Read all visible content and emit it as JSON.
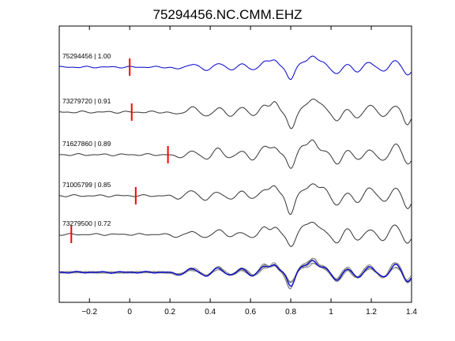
{
  "chart_data": {
    "type": "line",
    "title": "75294456.NC.CMM.EHZ",
    "xlabel": "",
    "ylabel": "",
    "xlim": [
      -0.35,
      1.4
    ],
    "x_ticks": [
      -0.2,
      0,
      0.2,
      0.4,
      0.6,
      0.8,
      1,
      1.2,
      1.4
    ],
    "x_tick_labels": [
      "−0.2",
      "0",
      "0.2",
      "0.4",
      "0.6",
      "0.8",
      "1",
      "1.2",
      "1.4"
    ],
    "grid": false,
    "colors": {
      "reference": "#0000cc",
      "trace": "#333333",
      "stack": "#888888",
      "pick": "#ff0000"
    },
    "series": [
      {
        "label": "75294456 | 1.00",
        "color": "blue",
        "pick_time": 0.0
      },
      {
        "label": "73279720 | 0.91",
        "color": "black",
        "pick_time": 0.01
      },
      {
        "label": "71627860 | 0.89",
        "color": "black",
        "pick_time": 0.19
      },
      {
        "label": "71005799 | 0.85",
        "color": "black",
        "pick_time": 0.03
      },
      {
        "label": "73279500 | 0.72",
        "color": "black",
        "pick_time": -0.29
      }
    ],
    "waveform_shape": {
      "features": [
        {
          "t": 0.24,
          "a": -0.15,
          "w": 0.03
        },
        {
          "t": 0.31,
          "a": 0.25,
          "w": 0.03
        },
        {
          "t": 0.38,
          "a": -0.25,
          "w": 0.03
        },
        {
          "t": 0.44,
          "a": 0.3,
          "w": 0.03
        },
        {
          "t": 0.5,
          "a": -0.2,
          "w": 0.03
        },
        {
          "t": 0.56,
          "a": 0.25,
          "w": 0.03
        },
        {
          "t": 0.61,
          "a": -0.25,
          "w": 0.03
        },
        {
          "t": 0.67,
          "a": 0.45,
          "w": 0.03
        },
        {
          "t": 0.72,
          "a": 0.55,
          "w": 0.025
        },
        {
          "t": 0.8,
          "a": -1.0,
          "w": 0.025
        },
        {
          "t": 0.86,
          "a": 0.4,
          "w": 0.03
        },
        {
          "t": 0.91,
          "a": 0.8,
          "w": 0.03
        },
        {
          "t": 0.96,
          "a": 0.35,
          "w": 0.03
        },
        {
          "t": 1.03,
          "a": -0.6,
          "w": 0.03
        },
        {
          "t": 1.08,
          "a": 0.3,
          "w": 0.03
        },
        {
          "t": 1.13,
          "a": -0.4,
          "w": 0.03
        },
        {
          "t": 1.19,
          "a": 0.4,
          "w": 0.03
        },
        {
          "t": 1.26,
          "a": -0.35,
          "w": 0.03
        },
        {
          "t": 1.32,
          "a": 0.55,
          "w": 0.03
        },
        {
          "t": 1.38,
          "a": -0.7,
          "w": 0.025
        }
      ]
    }
  }
}
